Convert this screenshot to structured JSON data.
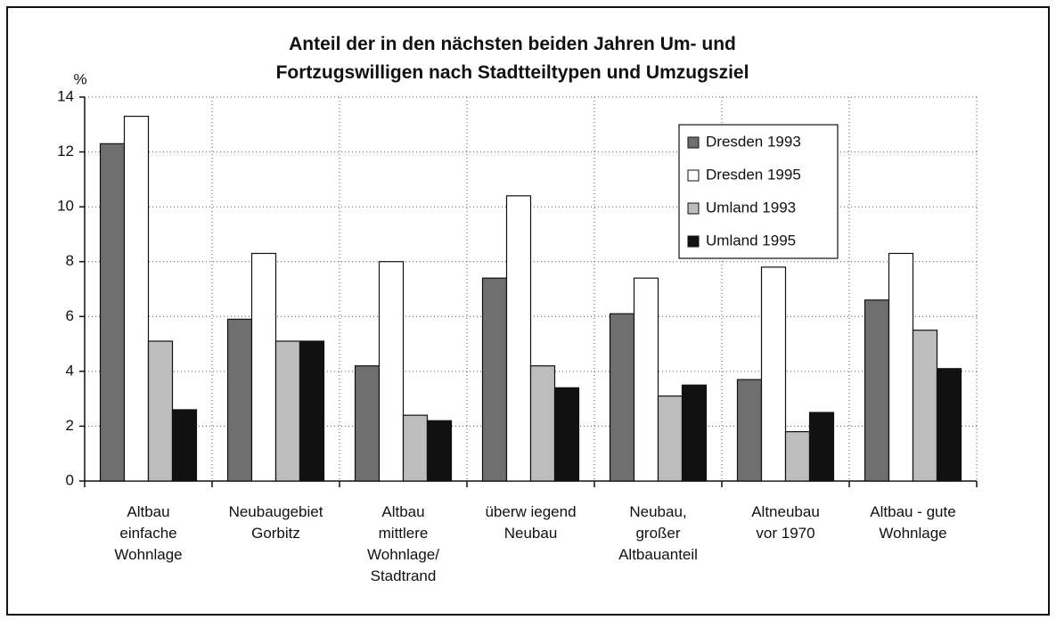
{
  "chart_data": {
    "type": "bar",
    "title": "Anteil der in den nächsten beiden Jahren Um- und\nFortzugswilligen nach Stadtteiltypen und Umzugsziel",
    "y_label": "%",
    "categories": [
      "Altbau\neinfache\nWohnlage",
      "Neubaugebiet\nGorbitz",
      "Altbau\nmittlere\nWohnlage/\nStadtrand",
      "überw iegend\nNeubau",
      "Neubau,\ngroßer\nAltbauanteil",
      "Altneubau\nvor 1970",
      "Altbau - gute\nWohnlage"
    ],
    "series": [
      {
        "name": "Dresden 1993",
        "color": "#6f6f6f",
        "values": [
          12.3,
          5.9,
          4.2,
          7.4,
          6.1,
          3.7,
          6.6
        ]
      },
      {
        "name": "Dresden 1995",
        "color": "#ffffff",
        "values": [
          13.3,
          8.3,
          8.0,
          10.4,
          7.4,
          7.8,
          8.3
        ]
      },
      {
        "name": "Umland 1993",
        "color": "#bdbdbd",
        "values": [
          5.1,
          5.1,
          2.4,
          4.2,
          3.1,
          1.8,
          5.5
        ]
      },
      {
        "name": "Umland 1995",
        "color": "#111111",
        "values": [
          2.6,
          5.1,
          2.2,
          3.4,
          3.5,
          2.5,
          4.1
        ]
      }
    ],
    "ylim": [
      0,
      14
    ],
    "yticks": [
      0,
      2,
      4,
      6,
      8,
      10,
      12,
      14
    ],
    "grid": true,
    "legend": "top-right"
  }
}
